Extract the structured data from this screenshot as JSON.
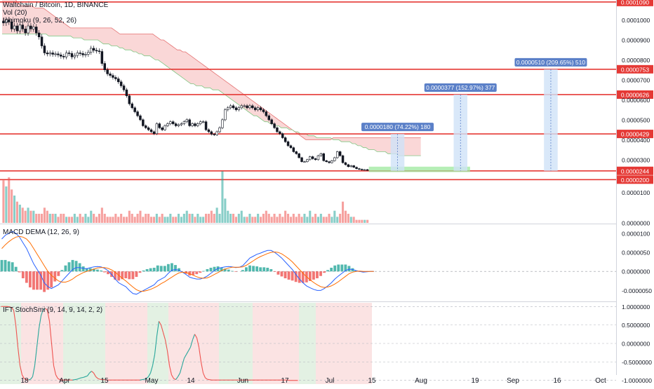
{
  "header": {
    "symbol_line": "Waltchain / Bitcoin, 1D, BINANCE",
    "study_volume": "Vol (20)",
    "study_ichimoku": "Ichimoku (9, 26, 52, 26)"
  },
  "colors": {
    "up": "#26a69a",
    "down": "#ef5350",
    "hline": "#e53935",
    "macd": "#2962ff",
    "signal": "#ff6d00",
    "kumo_bear": "#f8c9c9",
    "kumo_bull": "#cfe9cf",
    "target_zone": "#9ee89e",
    "projection": "#cfe2f8",
    "tag_bg": "#5b80c8",
    "ift_line": "#ef5350",
    "ift_line_up": "#26a69a",
    "ift_bg_up": "#e3f1e3",
    "ift_bg_down": "#fbe3e3"
  },
  "chart_data": [
    {
      "type": "line",
      "panel": "price",
      "title": "Waltchain / Bitcoin, 1D, BINANCE",
      "y_axis_ticks": [
        "0.0001000",
        "0.0000900",
        "0.0000800",
        "0.0000700",
        "0.0000600",
        "0.0000500",
        "0.0000400",
        "0.0000300"
      ],
      "ylim": [
        1.8e-05,
        0.00011
      ],
      "x_axis_ticks": [
        "18",
        "Apr",
        "15",
        "May",
        "14",
        "Jun",
        "17",
        "Jul",
        "15",
        "Aug",
        "19",
        "Sep",
        "16",
        "Oct"
      ],
      "close": [
        9.85e-05,
        0.0001,
        9.9e-05,
        9.55e-05,
        9.7e-05,
        9.45e-05,
        9.75e-05,
        9.55e-05,
        9.35e-05,
        9.7e-05,
        9.55e-05,
        9.65e-05,
        9.35e-05,
        9.15e-05,
        8.7e-05,
        8.35e-05,
        8.3e-05,
        8.35e-05,
        8.28e-05,
        8.3e-05,
        8.25e-05,
        8.18e-05,
        8.15e-05,
        8.35e-05,
        8.32e-05,
        8.15e-05,
        8.22e-05,
        8.35e-05,
        8.32e-05,
        8.25e-05,
        8.28e-05,
        8.38e-05,
        8.58e-05,
        8.48e-05,
        8.45e-05,
        8.42e-05,
        7.82e-05,
        7.5e-05,
        7.3e-05,
        7.22e-05,
        7.12e-05,
        7.05e-05,
        6.9e-05,
        6.7e-05,
        6.5e-05,
        6.2e-05,
        5.8e-05,
        5.6e-05,
        5.4e-05,
        5.2e-05,
        5e-05,
        4.7e-05,
        4.6e-05,
        4.5e-05,
        4.4e-05,
        4.3e-05,
        4.8e-05,
        4.6e-05,
        4.5e-05,
        4.7e-05,
        4.8e-05,
        4.9e-05,
        4.8e-05,
        4.7e-05,
        4.75e-05,
        4.8e-05,
        4.9e-05,
        5e-05,
        4.7e-05,
        4.8e-05,
        4.7e-05,
        4.8e-05,
        4.9e-05,
        4.9e-05,
        4.5e-05,
        4.4e-05,
        4.28e-05,
        4.25e-05,
        4.4e-05,
        4.6e-05,
        5e-05,
        5.5e-05,
        5.6e-05,
        5.7e-05,
        5.6e-05,
        5.5e-05,
        5.6e-05,
        5.7e-05,
        5.7e-05,
        5.6e-05,
        5.7e-05,
        5.6e-05,
        5.5e-05,
        5.6e-05,
        5.5e-05,
        5.4e-05,
        5.2e-05,
        5e-05,
        4.8e-05,
        4.6e-05,
        4.4e-05,
        4.3e-05,
        4.1e-05,
        3.9e-05,
        3.7e-05,
        3.6e-05,
        3.4e-05,
        3.3e-05,
        3.1e-05,
        2.9e-05,
        2.9e-05,
        3e-05,
        3.15e-05,
        3.05e-05,
        3e-05,
        3.2e-05,
        3.3e-05,
        2.95e-05,
        2.9e-05,
        2.85e-05,
        2.95e-05,
        3.1e-05,
        3.4e-05,
        3.2e-05,
        2.85e-05,
        2.75e-05,
        2.65e-05,
        2.7e-05,
        2.62e-05,
        2.55e-05,
        2.52e-05,
        2.5e-05,
        2.5e-05,
        2.48e-05
      ],
      "ichimoku_cloud_upper": [
        0.00012,
        0.00012,
        0.000118,
        0.000115,
        0.000112,
        0.00011,
        0.000108,
        0.000107,
        0.000107,
        0.000107,
        0.000107,
        0.000107,
        0.000106,
        0.000106,
        0.000106,
        0.000106,
        0.000105,
        0.000104,
        0.000103,
        0.000102,
        0.000101,
        0.0001,
        9.9e-05,
        9.8e-05,
        9.7e-05,
        9.6e-05,
        9.6e-05,
        9.6e-05,
        9.6e-05,
        9.6e-05,
        9.6e-05,
        9.6e-05,
        9.6e-05,
        9.6e-05,
        9.6e-05,
        9.6e-05,
        9.6e-05,
        9.6e-05,
        9.6e-05,
        9.6e-05,
        9.6e-05,
        9.5e-05,
        9.4e-05,
        9.3e-05,
        9.3e-05,
        9.3e-05,
        9.3e-05,
        9.3e-05,
        9.3e-05,
        9.3e-05,
        9.3e-05,
        9.3e-05,
        9.3e-05,
        9.3e-05,
        9.3e-05,
        9.3e-05,
        9.2e-05,
        9.1e-05,
        9e-05,
        9e-05,
        8.9e-05,
        8.8e-05,
        8.7e-05,
        8.6e-05,
        8.5e-05,
        8.5e-05,
        8.4e-05,
        8.4e-05,
        8.3e-05,
        8.2e-05,
        8.1e-05,
        8e-05,
        7.9e-05,
        7.8e-05,
        7.7e-05,
        7.6e-05,
        7.5e-05,
        7.4e-05,
        7.3e-05,
        7.2e-05,
        7.1e-05,
        7e-05,
        6.9e-05,
        6.8e-05,
        6.7e-05,
        6.6e-05,
        6.5e-05,
        6.4e-05,
        6.3e-05,
        6.2e-05,
        6.1e-05,
        6e-05,
        5.9e-05,
        5.8e-05,
        5.7e-05,
        5.6e-05,
        5.5e-05,
        5.4e-05,
        5.3e-05,
        5.2e-05,
        5.1e-05,
        5e-05,
        4.9e-05,
        4.8e-05,
        4.7e-05,
        4.6e-05,
        4.5e-05,
        4.4e-05,
        4.3e-05,
        4.2e-05,
        4.1e-05,
        4e-05,
        4e-05,
        4e-05,
        4e-05,
        4e-05,
        4e-05,
        4e-05,
        4e-05,
        4e-05,
        4e-05,
        4.1e-05,
        4.1e-05,
        4.1e-05,
        4.1e-05,
        4.1e-05,
        4.1e-05,
        4.1e-05,
        4.1e-05,
        4.1e-05,
        4.1e-05,
        4.1e-05,
        4.1e-05,
        4.1e-05,
        4.1e-05,
        4.1e-05,
        4.1e-05,
        4.1e-05,
        4.1e-05,
        4.1e-05,
        4.1e-05,
        4.1e-05,
        4.1e-05,
        4.1e-05,
        4.1e-05,
        4.1e-05,
        4.1e-05,
        4.1e-05,
        4.1e-05,
        4.1e-05,
        4.1e-05,
        4.1e-05,
        4.1e-05,
        4.1e-05
      ],
      "ichimoku_cloud_lower": [
        9.3e-05,
        9.3e-05,
        9.3e-05,
        9.3e-05,
        9.3e-05,
        9.3e-05,
        9.3e-05,
        9.3e-05,
        9.3e-05,
        9.3e-05,
        9.3e-05,
        9.3e-05,
        9.3e-05,
        9.3e-05,
        9.3e-05,
        9.3e-05,
        9.3e-05,
        9.2e-05,
        9.2e-05,
        9.2e-05,
        9.2e-05,
        9.2e-05,
        9.2e-05,
        9.2e-05,
        9.2e-05,
        9.2e-05,
        9.1e-05,
        9.1e-05,
        9.1e-05,
        9.1e-05,
        9e-05,
        9e-05,
        9e-05,
        9e-05,
        9e-05,
        9e-05,
        8.9e-05,
        8.8e-05,
        8.8e-05,
        8.8e-05,
        8.7e-05,
        8.7e-05,
        8.7e-05,
        8.6e-05,
        8.6e-05,
        8.5e-05,
        8.5e-05,
        8.5e-05,
        8.4e-05,
        8.4e-05,
        8.3e-05,
        8.3e-05,
        8.2e-05,
        8.2e-05,
        8.2e-05,
        8.1e-05,
        8e-05,
        8e-05,
        7.9e-05,
        7.8e-05,
        7.7e-05,
        7.6e-05,
        7.5e-05,
        7.4e-05,
        7.3e-05,
        7.2e-05,
        7.1e-05,
        7e-05,
        6.9e-05,
        6.8e-05,
        6.8e-05,
        6.7e-05,
        6.7e-05,
        6.7e-05,
        6.6e-05,
        6.6e-05,
        6.6e-05,
        6.5e-05,
        6.5e-05,
        6.5e-05,
        6.4e-05,
        6.3e-05,
        6.2e-05,
        6.1e-05,
        6e-05,
        5.9e-05,
        5.8e-05,
        5.7e-05,
        5.6e-05,
        5.5e-05,
        5.4e-05,
        5.3e-05,
        5.2e-05,
        5.2e-05,
        5.1e-05,
        5e-05,
        4.9e-05,
        4.9e-05,
        4.8e-05,
        4.8e-05,
        4.7e-05,
        4.7e-05,
        4.6e-05,
        4.6e-05,
        4.6e-05,
        4.5e-05,
        4.5e-05,
        4.4e-05,
        4.4e-05,
        4.3e-05,
        4.3e-05,
        4.3e-05,
        4.2e-05,
        4.2e-05,
        4.2e-05,
        4.1e-05,
        4.1e-05,
        4.1e-05,
        4.1e-05,
        4.1e-05,
        4.1e-05,
        4e-05,
        4e-05,
        4e-05,
        3.9e-05,
        3.9e-05,
        3.9e-05,
        3.9e-05,
        3.8e-05,
        3.8e-05,
        3.7e-05,
        3.7e-05,
        3.6e-05,
        3.6e-05,
        3.5e-05,
        3.5e-05,
        3.5e-05,
        3.4e-05,
        3.4e-05,
        3.4e-05,
        3.4e-05,
        3.3e-05,
        3.3e-05,
        3.3e-05,
        3.3e-05,
        3.2e-05,
        3.2e-05,
        3.2e-05,
        3.2e-05,
        3.2e-05,
        3.2e-05,
        3.2e-05,
        3.2e-05,
        3.2e-05
      ],
      "horizontal_levels": [
        {
          "label": "0.0001090",
          "value": 0.000109
        },
        {
          "label": "0.0000753",
          "value": 7.53e-05
        },
        {
          "label": "0.0000626",
          "value": 6.26e-05
        },
        {
          "label": "0.0000429",
          "value": 4.29e-05
        },
        {
          "label": "0.0000244",
          "value": 2.44e-05
        },
        {
          "label": "0.0000200",
          "value": 2e-05
        }
      ],
      "projections": [
        {
          "label": "0.0000180 (74.22%) 180",
          "top": 4.29e-05,
          "bottom": 2.44e-05,
          "start": 142,
          "end": 147
        },
        {
          "label": "0.0000377 (152.97%) 377",
          "top": 6.26e-05,
          "bottom": 2.44e-05,
          "start": 165,
          "end": 170
        },
        {
          "label": "0.0000510 (209.65%) 510",
          "top": 7.53e-05,
          "bottom": 2.44e-05,
          "start": 198,
          "end": 203
        }
      ],
      "target_zone": {
        "top": 2.65e-05,
        "bottom": 2.38e-05,
        "start": 134,
        "end": 171
      }
    },
    {
      "type": "bar",
      "panel": "volume",
      "y_axis_ticks": [
        "0.0000100",
        "0.0000000"
      ],
      "ylim": [
        0,
        1.8e-05
      ],
      "values": [
        1.4e-05,
        1.2e-05,
        1.5e-05,
        1.1e-05,
        9e-06,
        7e-06,
        6e-06,
        5e-06,
        4e-06,
        5e-06,
        4e-06,
        4e-06,
        3e-06,
        3e-06,
        3e-06,
        5e-06,
        4e-06,
        3e-06,
        3e-06,
        3e-06,
        2e-06,
        3e-06,
        3e-06,
        2e-06,
        2e-06,
        2e-06,
        3e-06,
        2e-06,
        3e-06,
        2e-06,
        3e-06,
        2e-06,
        4e-06,
        3e-06,
        2e-06,
        3e-06,
        5e-06,
        3e-06,
        2e-06,
        2e-06,
        2e-06,
        3e-06,
        2e-06,
        3e-06,
        2e-06,
        2e-06,
        4e-06,
        3e-06,
        2e-06,
        3e-06,
        4e-06,
        2e-06,
        3e-06,
        3e-06,
        2e-06,
        2e-06,
        3e-06,
        2e-06,
        3e-06,
        2e-06,
        2e-06,
        3e-06,
        2e-06,
        2e-06,
        3e-06,
        2e-06,
        3e-06,
        4e-06,
        3e-06,
        3e-06,
        2e-06,
        3e-06,
        2e-06,
        2e-06,
        3e-06,
        3e-06,
        4e-06,
        3e-06,
        5e-06,
        3e-06,
        1.7e-05,
        8e-06,
        4e-06,
        3e-06,
        3e-06,
        2e-06,
        3e-06,
        4e-06,
        2e-06,
        2e-06,
        3e-06,
        2e-06,
        2e-06,
        3e-06,
        2e-06,
        3e-06,
        4e-06,
        3e-06,
        2e-06,
        3e-06,
        2e-06,
        3e-06,
        2e-06,
        4e-06,
        3e-06,
        2e-06,
        3e-06,
        2e-06,
        3e-06,
        2e-06,
        3e-06,
        2e-06,
        4e-06,
        2e-06,
        3e-06,
        2e-06,
        3e-06,
        2e-06,
        2e-06,
        3e-06,
        2e-06,
        4e-06,
        2e-06,
        3e-06,
        7e-06,
        4e-06,
        3e-06,
        2e-06,
        2e-06,
        1e-06,
        1e-06,
        1e-06,
        1e-06,
        1e-06
      ]
    },
    {
      "type": "line",
      "panel": "macd",
      "title": "MACD DEMA (12, 26, 9)",
      "y_axis_ticks": [
        "0.0000100",
        "0.0000050",
        "0.0000000",
        "-0.0000050"
      ],
      "ylim": [
        -7.5e-06,
        1.2e-05
      ],
      "macd": [
        8.5e-06,
        9.5e-06,
        1e-05,
        1.05e-05,
        1e-05,
        9e-06,
        7.5e-06,
        6e-06,
        4e-06,
        2e-06,
        5e-07,
        -1e-06,
        -3e-06,
        -4e-06,
        -4.5e-06,
        -4e-06,
        -3.5e-06,
        -2.5e-06,
        -1.5e-06,
        -5e-07,
        5e-07,
        1e-06,
        1e-06,
        8e-07,
        7e-07,
        1e-06,
        1.2e-06,
        1.3e-06,
        1.2e-06,
        8e-07,
        2e-07,
        -8e-07,
        -2e-06,
        -3e-06,
        -3.5e-06,
        -4e-06,
        -5e-06,
        -5.8e-06,
        -6e-06,
        -5.5e-06,
        -5e-06,
        -4.5e-06,
        -4e-06,
        -3.5e-06,
        -2.5e-06,
        -2e-06,
        -1.5e-06,
        -5e-07,
        3e-07,
        5e-07,
        3e-07,
        -2e-07,
        -8e-07,
        -1.5e-06,
        -1.8e-06,
        -2e-06,
        -2e-06,
        -1.7e-06,
        -1.2e-06,
        -5e-07,
        2e-07,
        8e-07,
        1e-06,
        1.2e-06,
        1.3e-06,
        1.2e-06,
        1e-06,
        1.1e-06,
        1.5e-06,
        2.5e-06,
        3.5e-06,
        4e-06,
        4.5e-06,
        4.8e-06,
        5.2e-06,
        5.5e-06,
        5.5e-06,
        5e-06,
        4.3e-06,
        3.5e-06,
        2.5e-06,
        1.5e-06,
        5e-07,
        -8e-07,
        -2e-06,
        -3e-06,
        -3.8e-06,
        -4.3e-06,
        -4.7e-06,
        -5e-06,
        -5e-06,
        -4.5e-06,
        -3.8e-06,
        -3e-06,
        -2e-06,
        -1.2e-06,
        -5e-07,
        2e-07,
        6e-07,
        5e-07,
        2e-07,
        0,
        -2e-07,
        -1e-07,
        0,
        0
      ],
      "signal": [
        6e-06,
        7e-06,
        7.8e-06,
        8.5e-06,
        9e-06,
        9.2e-06,
        9e-06,
        8.5e-06,
        7.5e-06,
        6e-06,
        4.5e-06,
        3e-06,
        1.5e-06,
        0,
        -1e-06,
        -1.8e-06,
        -2.5e-06,
        -2.8e-06,
        -2.8e-06,
        -2.5e-06,
        -2e-06,
        -1.3e-06,
        -8e-07,
        -3e-07,
        0,
        3e-07,
        6e-07,
        9e-07,
        1e-06,
        1e-06,
        8e-07,
        4e-07,
        -2e-07,
        -1e-06,
        -1.8e-06,
        -2.5e-06,
        -3.3e-06,
        -4.1e-06,
        -4.8e-06,
        -5.2e-06,
        -5.2e-06,
        -5e-06,
        -4.7e-06,
        -4.3e-06,
        -3.8e-06,
        -3.2e-06,
        -2.7e-06,
        -2.1e-06,
        -1.5e-06,
        -9e-07,
        -4e-07,
        -2e-07,
        -3e-07,
        -6e-07,
        -1e-06,
        -1.4e-06,
        -1.7e-06,
        -1.8e-06,
        -1.7e-06,
        -1.3e-06,
        -8e-07,
        -3e-07,
        2e-07,
        6e-07,
        9e-07,
        1.1e-06,
        1.1e-06,
        1.1e-06,
        1.2e-06,
        1.6e-06,
        2.2e-06,
        2.8e-06,
        3.4e-06,
        3.9e-06,
        4.3e-06,
        4.7e-06,
        5e-06,
        5.1e-06,
        5e-06,
        4.6e-06,
        4e-06,
        3.3e-06,
        2.5e-06,
        1.5e-06,
        5e-07,
        -5e-07,
        -1.4e-06,
        -2.2e-06,
        -2.9e-06,
        -3.5e-06,
        -4e-06,
        -4.2e-06,
        -4.1e-06,
        -3.8e-06,
        -3.3e-06,
        -2.7e-06,
        -2e-06,
        -1.3e-06,
        -6e-07,
        -2e-07,
        0,
        1e-07,
        0,
        0,
        0,
        0
      ]
    },
    {
      "type": "line",
      "panel": "ift_stochsmi",
      "title": "IFT StochSmi (9, 14, 9, 14, 2, 2)",
      "y_axis_ticks": [
        "1.0000000",
        "0.5000000",
        "0.0000000",
        "-0.5000000",
        "-1.0000000"
      ],
      "ylim": [
        -1.1,
        1.1
      ],
      "values": [
        1,
        1,
        1,
        1,
        0.99,
        0.97,
        0.9,
        0.5,
        -0.1,
        -0.6,
        -0.85,
        -0.95,
        -0.98,
        -0.99,
        -0.97,
        -0.9,
        -0.6,
        -0.1,
        0.4,
        0.75,
        0.92,
        0.95,
        0.9,
        0.6,
        0,
        -0.6,
        -0.85,
        -0.95,
        -0.98,
        -0.99,
        -0.99,
        -0.99,
        -0.99,
        -0.99,
        -0.99,
        -0.98,
        -0.97,
        -0.95,
        -0.93,
        -0.92,
        -0.9,
        -0.88,
        -0.8,
        -0.75,
        -0.8,
        -0.9,
        -0.95,
        -0.97,
        -0.98,
        -0.98,
        -0.99,
        -0.99,
        -0.99,
        -0.99,
        -0.99,
        -0.99,
        -0.99,
        -0.99,
        -0.99,
        -0.99,
        -0.99,
        -0.99,
        -0.99,
        -0.99,
        -0.99,
        -0.99,
        -0.99,
        -0.98,
        -0.97,
        -0.95,
        -0.9,
        -0.8,
        -0.6,
        -0.3,
        0.2,
        0.6,
        0.5,
        0.3,
        0.1,
        -0.2,
        -0.6,
        -0.85,
        -0.95,
        -0.98,
        -0.9,
        -0.8,
        -0.6,
        -0.4,
        -0.3,
        -0.2,
        -0.1,
        0.1,
        0.25,
        0.15,
        -0.1,
        -0.5,
        -0.8,
        -0.93,
        -0.97,
        -0.98,
        -0.99,
        -0.99,
        -0.99,
        -0.99,
        -0.99,
        -0.99,
        -0.99,
        -0.99,
        -0.99,
        -0.99,
        -0.99,
        -0.99,
        -0.99,
        -0.99,
        -0.99,
        -0.99,
        -0.99,
        -0.99,
        -0.99,
        -0.99,
        -0.99,
        -0.99,
        -0.99,
        -0.99,
        -0.99,
        -0.99,
        -0.99,
        -0.99,
        -0.99,
        -0.99,
        -0.99,
        -0.99,
        -0.99,
        -0.99,
        -0.99,
        -0.99,
        -0.99,
        -1,
        -1,
        -1,
        -1,
        -1
      ],
      "background_regions": [
        {
          "start": 0,
          "end": 10,
          "state": "up"
        },
        {
          "start": 10,
          "end": 30,
          "state": "down"
        },
        {
          "start": 30,
          "end": 50,
          "state": "up"
        },
        {
          "start": 50,
          "end": 70,
          "state": "down"
        },
        {
          "start": 70,
          "end": 80,
          "state": "up"
        },
        {
          "start": 80,
          "end": 104,
          "state": "down"
        },
        {
          "start": 104,
          "end": 120,
          "state": "up"
        },
        {
          "start": 120,
          "end": 142,
          "state": "down"
        },
        {
          "start": 142,
          "end": 150,
          "state": "up"
        },
        {
          "start": 150,
          "end": 185,
          "state": "down"
        }
      ]
    }
  ]
}
